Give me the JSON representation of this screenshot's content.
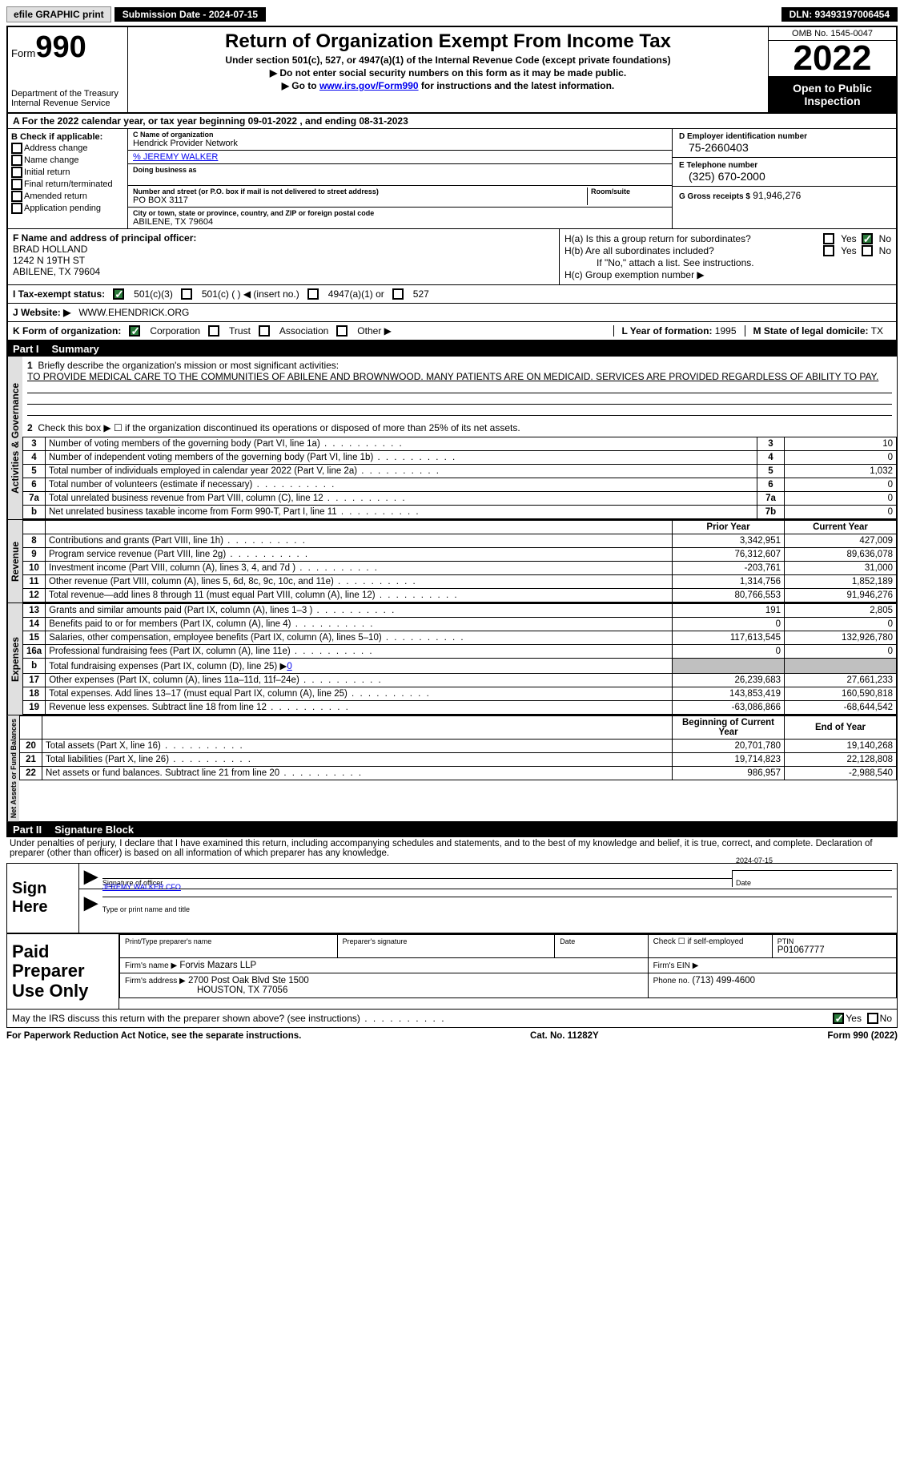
{
  "topbar": {
    "efile": "efile GRAPHIC print",
    "sub_date_label": "Submission Date - 2024-07-15",
    "dln": "DLN: 93493197006454"
  },
  "header": {
    "form_word": "Form",
    "form_num": "990",
    "dept": "Department of the Treasury",
    "irs": "Internal Revenue Service",
    "title": "Return of Organization Exempt From Income Tax",
    "sub": "Under section 501(c), 527, or 4947(a)(1) of the Internal Revenue Code (except private foundations)",
    "note1": "▶ Do not enter social security numbers on this form as it may be made public.",
    "note2_pre": "▶ Go to ",
    "note2_link": "www.irs.gov/Form990",
    "note2_post": " for instructions and the latest information.",
    "omb": "OMB No. 1545-0047",
    "year": "2022",
    "inspect": "Open to Public Inspection"
  },
  "row_a": {
    "text": "A For the 2022 calendar year, or tax year beginning 09-01-2022    , and ending 08-31-2023"
  },
  "col_b": {
    "label": "B Check if applicable:",
    "items": [
      "Address change",
      "Name change",
      "Initial return",
      "Final return/terminated",
      "Amended return",
      "Application pending"
    ]
  },
  "col_c": {
    "name_lbl": "C Name of organization",
    "name": "Hendrick Provider Network",
    "care_of": "% JEREMY WALKER",
    "dba_lbl": "Doing business as",
    "addr_lbl": "Number and street (or P.O. box if mail is not delivered to street address)",
    "room_lbl": "Room/suite",
    "addr": "PO BOX 3117",
    "city_lbl": "City or town, state or province, country, and ZIP or foreign postal code",
    "city": "ABILENE, TX   79604"
  },
  "col_d": {
    "ein_lbl": "D Employer identification number",
    "ein": "75-2660403",
    "phone_lbl": "E Telephone number",
    "phone": "(325) 670-2000",
    "gross_lbl": "G Gross receipts $",
    "gross": "91,946,276"
  },
  "col_f": {
    "lbl": "F  Name and address of principal officer:",
    "name": "BRAD HOLLAND",
    "addr1": "1242 N 19TH ST",
    "addr2": "ABILENE, TX   79604"
  },
  "col_h": {
    "ha": "H(a)  Is this a group return for subordinates?",
    "hb": "H(b)  Are all subordinates included?",
    "hb_note": "If \"No,\" attach a list. See instructions.",
    "hc": "H(c)  Group exemption number ▶",
    "yes": "Yes",
    "no": "No"
  },
  "row_i": {
    "lbl": "I   Tax-exempt status:",
    "o1": "501(c)(3)",
    "o2": "501(c) (  ) ◀ (insert no.)",
    "o3": "4947(a)(1) or",
    "o4": "527"
  },
  "row_j": {
    "lbl": "J   Website: ▶",
    "val": "WWW.EHENDRICK.ORG"
  },
  "row_k": {
    "lbl": "K Form of organization:",
    "o1": "Corporation",
    "o2": "Trust",
    "o3": "Association",
    "o4": "Other ▶",
    "l_lbl": "L Year of formation:",
    "l_val": "1995",
    "m_lbl": "M State of legal domicile:",
    "m_val": "TX"
  },
  "part1": {
    "hdr": "Part I",
    "title": "Summary",
    "q1_lbl": "Briefly describe the organization's mission or most significant activities:",
    "q1_val": "TO PROVIDE MEDICAL CARE TO THE COMMUNITIES OF ABILENE AND BROWNWOOD. MANY PATIENTS ARE ON MEDICAID. SERVICES ARE PROVIDED REGARDLESS OF ABILITY TO PAY.",
    "q2": "Check this box ▶ ☐ if the organization discontinued its operations or disposed of more than 25% of its net assets.",
    "rows_gov": [
      {
        "n": "3",
        "d": "Number of voting members of the governing body (Part VI, line 1a)",
        "b": "3",
        "v": "10"
      },
      {
        "n": "4",
        "d": "Number of independent voting members of the governing body (Part VI, line 1b)",
        "b": "4",
        "v": "0"
      },
      {
        "n": "5",
        "d": "Total number of individuals employed in calendar year 2022 (Part V, line 2a)",
        "b": "5",
        "v": "1,032"
      },
      {
        "n": "6",
        "d": "Total number of volunteers (estimate if necessary)",
        "b": "6",
        "v": "0"
      },
      {
        "n": "7a",
        "d": "Total unrelated business revenue from Part VIII, column (C), line 12",
        "b": "7a",
        "v": "0"
      },
      {
        "n": "b",
        "d": "Net unrelated business taxable income from Form 990-T, Part I, line 11",
        "b": "7b",
        "v": "0"
      }
    ],
    "col_head_py": "Prior Year",
    "col_head_cy": "Current Year",
    "rows_rev": [
      {
        "n": "8",
        "d": "Contributions and grants (Part VIII, line 1h)",
        "py": "3,342,951",
        "cy": "427,009"
      },
      {
        "n": "9",
        "d": "Program service revenue (Part VIII, line 2g)",
        "py": "76,312,607",
        "cy": "89,636,078"
      },
      {
        "n": "10",
        "d": "Investment income (Part VIII, column (A), lines 3, 4, and 7d )",
        "py": "-203,761",
        "cy": "31,000"
      },
      {
        "n": "11",
        "d": "Other revenue (Part VIII, column (A), lines 5, 6d, 8c, 9c, 10c, and 11e)",
        "py": "1,314,756",
        "cy": "1,852,189"
      },
      {
        "n": "12",
        "d": "Total revenue—add lines 8 through 11 (must equal Part VIII, column (A), line 12)",
        "py": "80,766,553",
        "cy": "91,946,276"
      }
    ],
    "rows_exp": [
      {
        "n": "13",
        "d": "Grants and similar amounts paid (Part IX, column (A), lines 1–3 )",
        "py": "191",
        "cy": "2,805"
      },
      {
        "n": "14",
        "d": "Benefits paid to or for members (Part IX, column (A), line 4)",
        "py": "0",
        "cy": "0"
      },
      {
        "n": "15",
        "d": "Salaries, other compensation, employee benefits (Part IX, column (A), lines 5–10)",
        "py": "117,613,545",
        "cy": "132,926,780"
      },
      {
        "n": "16a",
        "d": "Professional fundraising fees (Part IX, column (A), line 11e)",
        "py": "0",
        "cy": "0"
      }
    ],
    "row_16b": {
      "n": "b",
      "d": "Total fundraising expenses (Part IX, column (D), line 25) ▶",
      "v": "0"
    },
    "rows_exp2": [
      {
        "n": "17",
        "d": "Other expenses (Part IX, column (A), lines 11a–11d, 11f–24e)",
        "py": "26,239,683",
        "cy": "27,661,233"
      },
      {
        "n": "18",
        "d": "Total expenses. Add lines 13–17 (must equal Part IX, column (A), line 25)",
        "py": "143,853,419",
        "cy": "160,590,818"
      },
      {
        "n": "19",
        "d": "Revenue less expenses. Subtract line 18 from line 12",
        "py": "-63,086,866",
        "cy": "-68,644,542"
      }
    ],
    "col_head_by": "Beginning of Current Year",
    "col_head_ey": "End of Year",
    "rows_net": [
      {
        "n": "20",
        "d": "Total assets (Part X, line 16)",
        "py": "20,701,780",
        "cy": "19,140,268"
      },
      {
        "n": "21",
        "d": "Total liabilities (Part X, line 26)",
        "py": "19,714,823",
        "cy": "22,128,808"
      },
      {
        "n": "22",
        "d": "Net assets or fund balances. Subtract line 21 from line 20",
        "py": "986,957",
        "cy": "-2,988,540"
      }
    ],
    "vtabs": {
      "gov": "Activities & Governance",
      "rev": "Revenue",
      "exp": "Expenses",
      "net": "Net Assets or Fund Balances"
    }
  },
  "part2": {
    "hdr": "Part II",
    "title": "Signature Block",
    "penalty": "Under penalties of perjury, I declare that I have examined this return, including accompanying schedules and statements, and to the best of my knowledge and belief, it is true, correct, and complete. Declaration of preparer (other than officer) is based on all information of which preparer has any knowledge.",
    "sign_here": "Sign Here",
    "sig_officer": "Signature of officer",
    "sig_date": "2024-07-15",
    "date_lbl": "Date",
    "name_title": "JEREMY WALKER  CFO",
    "name_title_lbl": "Type or print name and title",
    "paid_prep": "Paid Preparer Use Only",
    "pp_name_lbl": "Print/Type preparer's name",
    "pp_sig_lbl": "Preparer's signature",
    "pp_date_lbl": "Date",
    "pp_check": "Check ☐ if self-employed",
    "ptin_lbl": "PTIN",
    "ptin": "P01067777",
    "firm_name_lbl": "Firm's name    ▶",
    "firm_name": "Forvis Mazars LLP",
    "firm_ein_lbl": "Firm's EIN ▶",
    "firm_addr_lbl": "Firm's address ▶",
    "firm_addr1": "2700 Post Oak Blvd Ste 1500",
    "firm_addr2": "HOUSTON, TX   77056",
    "firm_phone_lbl": "Phone no.",
    "firm_phone": "(713) 499-4600",
    "may_irs": "May the IRS discuss this return with the preparer shown above? (see instructions)",
    "yes": "Yes",
    "no": "No"
  },
  "footer": {
    "left": "For Paperwork Reduction Act Notice, see the separate instructions.",
    "mid": "Cat. No. 11282Y",
    "right": "Form 990 (2022)"
  }
}
